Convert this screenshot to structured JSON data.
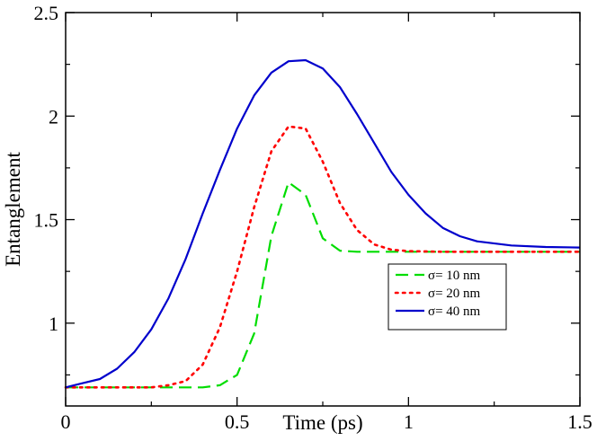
{
  "chart_data": {
    "type": "line",
    "title": "",
    "xlabel": "Time (ps)",
    "ylabel": "Entanglement",
    "xlim": [
      0,
      1.5
    ],
    "ylim": [
      0.6,
      2.5
    ],
    "xticks": [
      0,
      0.5,
      1,
      1.5
    ],
    "xtick_labels": [
      "0",
      "0.5",
      "1",
      "1.5"
    ],
    "yticks": [
      1,
      1.5,
      2,
      2.5
    ],
    "ytick_labels": [
      "1",
      "1.5",
      "2",
      "2.5"
    ],
    "grid": false,
    "legend_position": "lower-right",
    "series": [
      {
        "name": "σ= 10 nm",
        "color": "#00dd00",
        "style": "dashed",
        "x": [
          0,
          0.05,
          0.1,
          0.15,
          0.2,
          0.25,
          0.3,
          0.35,
          0.4,
          0.45,
          0.5,
          0.55,
          0.6,
          0.65,
          0.7,
          0.75,
          0.8,
          0.85,
          0.9,
          1.0,
          1.1,
          1.2,
          1.3,
          1.4,
          1.5
        ],
        "y": [
          0.69,
          0.69,
          0.69,
          0.69,
          0.69,
          0.69,
          0.69,
          0.69,
          0.69,
          0.7,
          0.75,
          0.95,
          1.42,
          1.68,
          1.62,
          1.41,
          1.35,
          1.345,
          1.345,
          1.345,
          1.345,
          1.345,
          1.345,
          1.345,
          1.345
        ]
      },
      {
        "name": "σ= 20 nm",
        "color": "#ff0000",
        "style": "dotted",
        "x": [
          0,
          0.05,
          0.1,
          0.15,
          0.2,
          0.25,
          0.3,
          0.35,
          0.4,
          0.45,
          0.5,
          0.55,
          0.6,
          0.65,
          0.7,
          0.75,
          0.8,
          0.85,
          0.9,
          0.95,
          1.0,
          1.1,
          1.2,
          1.3,
          1.4,
          1.5
        ],
        "y": [
          0.69,
          0.69,
          0.69,
          0.69,
          0.69,
          0.69,
          0.7,
          0.72,
          0.8,
          0.98,
          1.25,
          1.56,
          1.83,
          1.95,
          1.94,
          1.78,
          1.58,
          1.45,
          1.38,
          1.355,
          1.348,
          1.345,
          1.345,
          1.345,
          1.345,
          1.345
        ]
      },
      {
        "name": "σ= 40 nm",
        "color": "#0000cc",
        "style": "solid",
        "x": [
          0,
          0.025,
          0.05,
          0.1,
          0.15,
          0.2,
          0.25,
          0.3,
          0.35,
          0.4,
          0.45,
          0.5,
          0.55,
          0.6,
          0.65,
          0.7,
          0.75,
          0.8,
          0.85,
          0.9,
          0.95,
          1.0,
          1.05,
          1.1,
          1.15,
          1.2,
          1.3,
          1.4,
          1.5
        ],
        "y": [
          0.69,
          0.7,
          0.71,
          0.73,
          0.78,
          0.86,
          0.97,
          1.12,
          1.31,
          1.53,
          1.74,
          1.94,
          2.1,
          2.21,
          2.265,
          2.27,
          2.23,
          2.14,
          2.01,
          1.87,
          1.73,
          1.62,
          1.53,
          1.46,
          1.42,
          1.395,
          1.375,
          1.368,
          1.365
        ]
      }
    ]
  }
}
